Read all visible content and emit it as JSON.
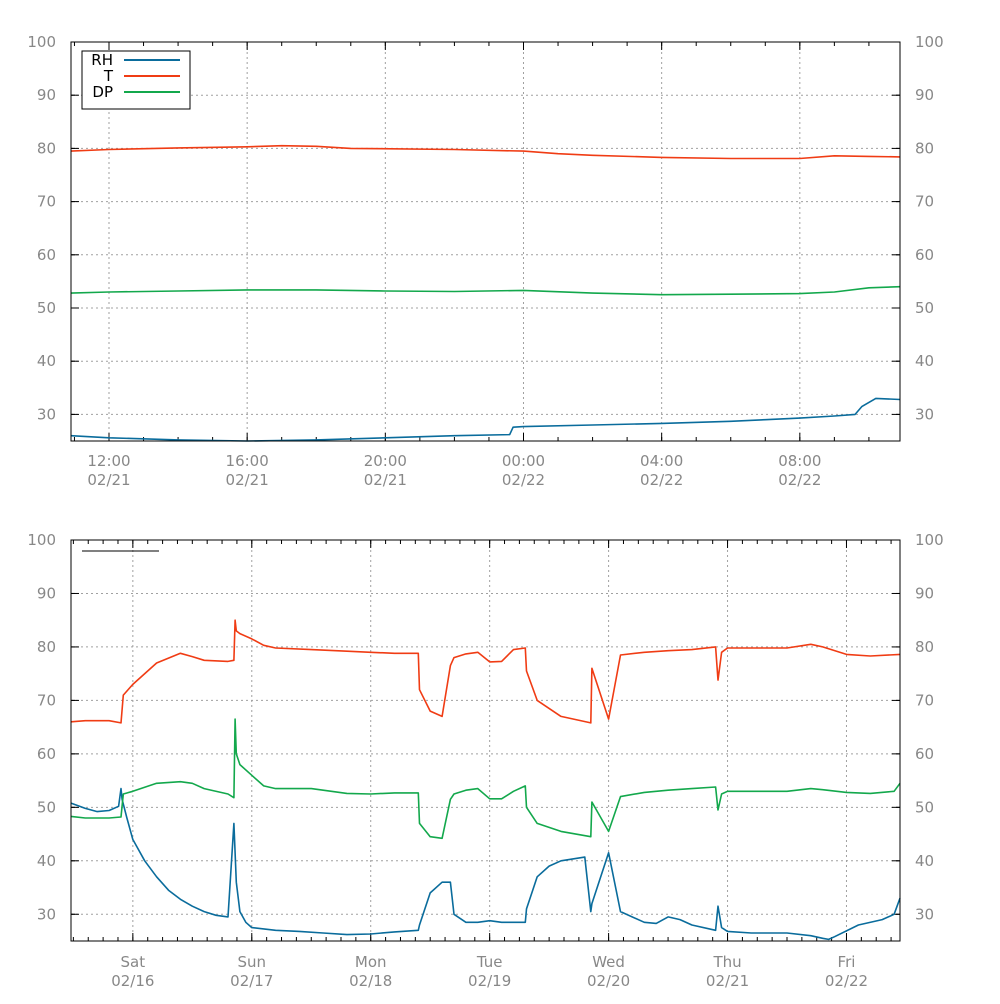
{
  "chart_data": [
    {
      "type": "line",
      "title": "",
      "xlabel": "",
      "ylabel": "",
      "ylim": [
        25,
        100
      ],
      "yticks": [
        30,
        40,
        50,
        60,
        70,
        80,
        90,
        100
      ],
      "x_unit": "hours",
      "xlim": [
        10.9,
        34.9
      ],
      "xticks": [
        {
          "x": 12,
          "time": "12:00",
          "date": "02/21"
        },
        {
          "x": 16,
          "time": "16:00",
          "date": "02/21"
        },
        {
          "x": 20,
          "time": "20:00",
          "date": "02/21"
        },
        {
          "x": 24,
          "time": "00:00",
          "date": "02/22"
        },
        {
          "x": 28,
          "time": "04:00",
          "date": "02/22"
        },
        {
          "x": 32,
          "time": "08:00",
          "date": "02/22"
        }
      ],
      "grid": true,
      "legend": {
        "position": "top-left"
      },
      "series": [
        {
          "name": "RH",
          "color": "#0a6c9c",
          "x": [
            10.9,
            12,
            14,
            16,
            18,
            20,
            22,
            23.6,
            23.7,
            24,
            26,
            28,
            30,
            31,
            32,
            33,
            33.6,
            33.8,
            34.2,
            34.9
          ],
          "y": [
            26,
            25.6,
            25.2,
            25,
            25.2,
            25.6,
            26,
            26.2,
            27.6,
            27.7,
            28,
            28.3,
            28.7,
            29,
            29.3,
            29.7,
            30,
            31.5,
            33,
            32.8
          ]
        },
        {
          "name": "T",
          "color": "#f03c14",
          "x": [
            10.9,
            12,
            14,
            16,
            17,
            18,
            19,
            22,
            24,
            25,
            26,
            28,
            30,
            32,
            33,
            34,
            34.9
          ],
          "y": [
            79.5,
            79.8,
            80.1,
            80.3,
            80.5,
            80.4,
            80,
            79.8,
            79.5,
            79,
            78.7,
            78.3,
            78.1,
            78.1,
            78.6,
            78.5,
            78.4
          ]
        },
        {
          "name": "DP",
          "color": "#13a84c",
          "x": [
            10.9,
            12,
            14,
            16,
            18,
            20,
            22,
            24,
            26,
            28,
            30,
            32,
            33,
            34,
            34.9
          ],
          "y": [
            52.8,
            53,
            53.2,
            53.4,
            53.4,
            53.2,
            53.1,
            53.3,
            52.8,
            52.5,
            52.6,
            52.7,
            53,
            53.8,
            54
          ]
        }
      ]
    },
    {
      "type": "line",
      "title": "",
      "xlabel": "",
      "ylabel": "",
      "ylim": [
        25,
        100
      ],
      "yticks": [
        30,
        40,
        50,
        60,
        70,
        80,
        90,
        100
      ],
      "x_unit": "days",
      "xlim": [
        -0.52,
        6.45
      ],
      "xticks": [
        {
          "x": 0,
          "time": "Sat",
          "date": "02/16"
        },
        {
          "x": 1,
          "time": "Sun",
          "date": "02/17"
        },
        {
          "x": 2,
          "time": "Mon",
          "date": "02/18"
        },
        {
          "x": 3,
          "time": "Tue",
          "date": "02/19"
        },
        {
          "x": 4,
          "time": "Wed",
          "date": "02/20"
        },
        {
          "x": 5,
          "time": "Thu",
          "date": "02/21"
        },
        {
          "x": 6,
          "time": "Fri",
          "date": "02/22"
        }
      ],
      "grid": true,
      "legend": {
        "position": "top-left"
      },
      "series": [
        {
          "name": "",
          "color": "#0a6c9c",
          "x": [
            -0.52,
            -0.4,
            -0.3,
            -0.2,
            -0.12,
            -0.1,
            -0.09,
            -0.05,
            0,
            0.1,
            0.2,
            0.3,
            0.4,
            0.5,
            0.6,
            0.7,
            0.8,
            0.85,
            0.87,
            0.9,
            0.95,
            1,
            1.2,
            1.4,
            1.6,
            1.8,
            2,
            2.2,
            2.4,
            2.41,
            2.5,
            2.6,
            2.67,
            2.7,
            2.8,
            2.9,
            3,
            3.1,
            3.2,
            3.3,
            3.31,
            3.4,
            3.5,
            3.6,
            3.8,
            3.85,
            3.86,
            4,
            4.1,
            4.3,
            4.4,
            4.5,
            4.6,
            4.7,
            4.9,
            4.92,
            4.95,
            5,
            5.2,
            5.5,
            5.7,
            5.8,
            5.85,
            5.9,
            6.1,
            6.3,
            6.4,
            6.45
          ],
          "y": [
            50.8,
            49.8,
            49.2,
            49.4,
            50.2,
            53.5,
            51.5,
            48,
            44,
            40,
            37,
            34.5,
            32.8,
            31.5,
            30.5,
            29.8,
            29.5,
            47,
            36,
            30.5,
            28.5,
            27.5,
            27,
            26.8,
            26.5,
            26.2,
            26.3,
            26.7,
            27,
            28,
            34,
            36,
            36,
            30,
            28.5,
            28.5,
            28.8,
            28.5,
            28.5,
            28.5,
            31,
            37,
            39,
            40,
            40.7,
            30.5,
            32,
            41.5,
            30.5,
            28.5,
            28.3,
            29.5,
            29,
            28,
            27,
            31.5,
            27.5,
            26.8,
            26.5,
            26.5,
            26,
            25.5,
            25.3,
            25.8,
            28,
            29,
            30,
            33
          ]
        },
        {
          "name": "",
          "color": "#f03c14",
          "x": [
            -0.52,
            -0.4,
            -0.2,
            -0.1,
            -0.08,
            0,
            0.2,
            0.4,
            0.5,
            0.6,
            0.8,
            0.85,
            0.86,
            0.87,
            0.9,
            1,
            1.1,
            1.2,
            1.5,
            1.8,
            2,
            2.2,
            2.4,
            2.41,
            2.5,
            2.6,
            2.67,
            2.7,
            2.8,
            2.9,
            3,
            3.1,
            3.2,
            3.3,
            3.31,
            3.4,
            3.6,
            3.85,
            3.86,
            4,
            4.1,
            4.3,
            4.5,
            4.7,
            4.9,
            4.92,
            4.95,
            5,
            5.2,
            5.5,
            5.7,
            5.8,
            6,
            6.2,
            6.45
          ],
          "y": [
            66,
            66.2,
            66.2,
            65.8,
            71,
            73,
            77,
            78.8,
            78.2,
            77.5,
            77.3,
            77.5,
            85,
            83,
            82.5,
            81.5,
            80.3,
            79.8,
            79.5,
            79.2,
            79,
            78.8,
            78.8,
            72,
            68,
            67,
            76.5,
            78,
            78.7,
            79,
            77.2,
            77.3,
            79.5,
            79.8,
            75.5,
            70,
            67,
            65.8,
            76,
            66.5,
            78.5,
            79,
            79.3,
            79.5,
            80,
            73.8,
            79,
            79.8,
            79.8,
            79.8,
            80.5,
            80,
            78.6,
            78.3,
            78.6
          ]
        },
        {
          "name": "",
          "color": "#13a84c",
          "x": [
            -0.52,
            -0.4,
            -0.2,
            -0.1,
            -0.08,
            0,
            0.2,
            0.4,
            0.5,
            0.6,
            0.8,
            0.85,
            0.86,
            0.87,
            0.9,
            1,
            1.1,
            1.2,
            1.5,
            1.8,
            2,
            2.2,
            2.4,
            2.41,
            2.5,
            2.6,
            2.67,
            2.7,
            2.8,
            2.9,
            3,
            3.1,
            3.2,
            3.3,
            3.31,
            3.4,
            3.6,
            3.85,
            3.86,
            4,
            4.1,
            4.3,
            4.5,
            4.7,
            4.9,
            4.92,
            4.95,
            5,
            5.2,
            5.5,
            5.7,
            5.8,
            6,
            6.2,
            6.4,
            6.45
          ],
          "y": [
            48.3,
            48,
            48,
            48.2,
            52.5,
            53,
            54.5,
            54.8,
            54.5,
            53.5,
            52.5,
            51.8,
            66.5,
            60,
            58,
            56,
            54,
            53.5,
            53.5,
            52.6,
            52.5,
            52.7,
            52.7,
            47,
            44.5,
            44.2,
            51.5,
            52.5,
            53.2,
            53.5,
            51.6,
            51.6,
            53,
            54,
            50,
            47,
            45.5,
            44.5,
            51,
            45.5,
            52,
            52.8,
            53.2,
            53.5,
            53.8,
            49.5,
            52.5,
            53,
            53,
            53,
            53.5,
            53.3,
            52.8,
            52.6,
            53,
            54.5
          ]
        }
      ]
    }
  ]
}
